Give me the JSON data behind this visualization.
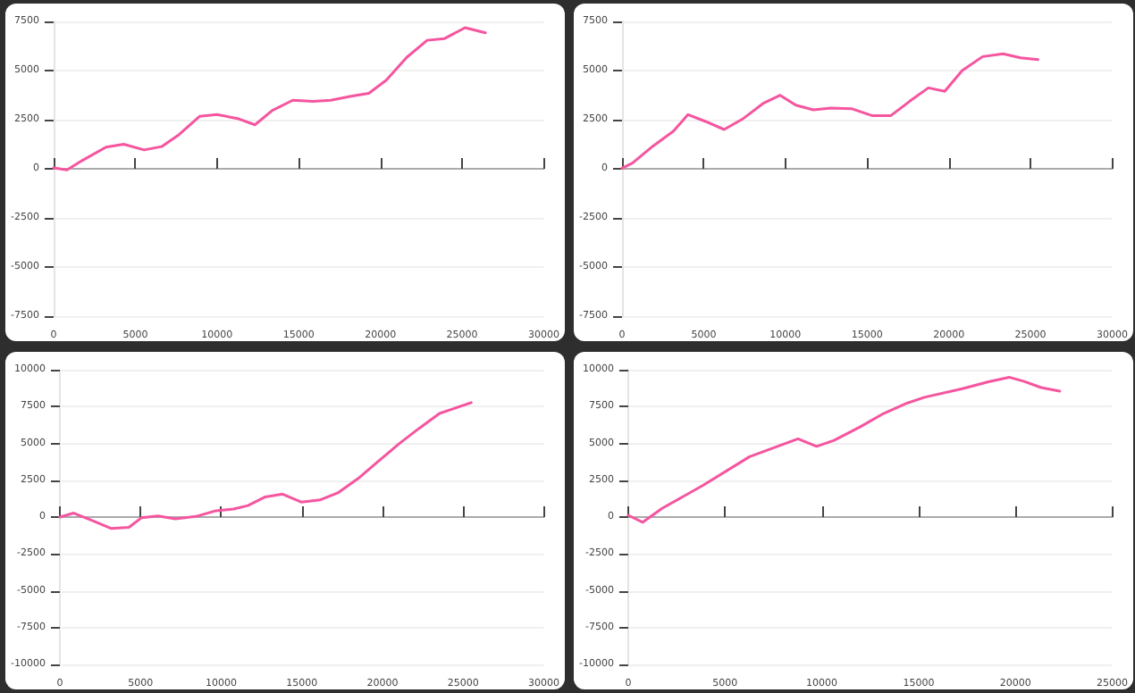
{
  "chart_data": [
    {
      "type": "line",
      "x": [
        0,
        820,
        1790,
        3210,
        4290,
        5540,
        6610,
        7680,
        8930,
        10000,
        11250,
        12320,
        13390,
        14640,
        15890,
        16960,
        18210,
        19290,
        20360,
        21610,
        22860,
        23930,
        25180,
        26430
      ],
      "values": [
        50,
        -60,
        440,
        1100,
        1250,
        960,
        1130,
        1740,
        2670,
        2760,
        2560,
        2240,
        2970,
        3490,
        3430,
        3490,
        3690,
        3840,
        4510,
        5670,
        6540,
        6630,
        7180,
        6920
      ],
      "color": "#f5559f",
      "xlim": [
        0,
        30000
      ],
      "xticks": [
        0,
        5000,
        10000,
        15000,
        20000,
        25000,
        30000
      ],
      "ylim": [
        -7500,
        7500
      ],
      "yticks": [
        -7500,
        -5000,
        -2500,
        0,
        2500,
        5000,
        7500
      ],
      "grid": "y",
      "marker": "none",
      "line_style": "solid"
    },
    {
      "type": "line",
      "x": [
        0,
        640,
        1890,
        3140,
        4040,
        5110,
        6250,
        7430,
        8680,
        9680,
        10640,
        11710,
        12790,
        14040,
        15290,
        16460,
        17610,
        18750,
        19750,
        20820,
        22070,
        23320,
        24390,
        25460
      ],
      "values": [
        30,
        290,
        1150,
        1910,
        2760,
        2410,
        2000,
        2560,
        3350,
        3740,
        3240,
        3000,
        3090,
        3060,
        2710,
        2710,
        3440,
        4120,
        3940,
        5000,
        5710,
        5850,
        5650,
        5560
      ],
      "color": "#f5559f",
      "xlim": [
        0,
        30000
      ],
      "xticks": [
        0,
        5000,
        10000,
        15000,
        20000,
        25000,
        30000
      ],
      "ylim": [
        -7500,
        7500
      ],
      "yticks": [
        -7500,
        -5000,
        -2500,
        0,
        2500,
        5000,
        7500
      ],
      "grid": "y",
      "marker": "none",
      "line_style": "solid"
    },
    {
      "type": "line",
      "x": [
        0,
        860,
        1940,
        3200,
        4280,
        5070,
        6080,
        7160,
        8420,
        9680,
        10760,
        11660,
        12730,
        13810,
        14960,
        16150,
        17230,
        18490,
        19750,
        21010,
        22270,
        23530,
        25500
      ],
      "values": [
        0,
        270,
        -200,
        -780,
        -700,
        -40,
        80,
        -120,
        40,
        430,
        550,
        780,
        1370,
        1560,
        1020,
        1170,
        1640,
        2620,
        3790,
        4960,
        6020,
        7030,
        7770
      ],
      "color": "#f5559f",
      "xlim": [
        0,
        30000
      ],
      "xticks": [
        0,
        5000,
        10000,
        15000,
        20000,
        25000,
        30000
      ],
      "ylim": [
        -10000,
        10000
      ],
      "yticks": [
        -10000,
        -7500,
        -5000,
        -2500,
        0,
        2500,
        5000,
        7500,
        10000
      ],
      "grid": "y",
      "marker": "none",
      "line_style": "solid"
    },
    {
      "type": "line",
      "x": [
        0,
        750,
        1750,
        3860,
        6270,
        8770,
        9730,
        10630,
        11990,
        13190,
        14400,
        15300,
        17260,
        18610,
        19670,
        20420,
        21330,
        22290
      ],
      "values": [
        120,
        -350,
        590,
        2150,
        4100,
        5310,
        4800,
        5200,
        6130,
        7030,
        7730,
        8130,
        8710,
        9180,
        9490,
        9220,
        8790,
        8550
      ],
      "color": "#f5559f",
      "xlim": [
        0,
        25000
      ],
      "xticks": [
        0,
        5000,
        10000,
        15000,
        20000,
        25000
      ],
      "ylim": [
        -10000,
        10000
      ],
      "yticks": [
        -10000,
        -7500,
        -5000,
        -2500,
        0,
        2500,
        5000,
        7500,
        10000
      ],
      "grid": "y",
      "marker": "none",
      "line_style": "solid"
    }
  ]
}
